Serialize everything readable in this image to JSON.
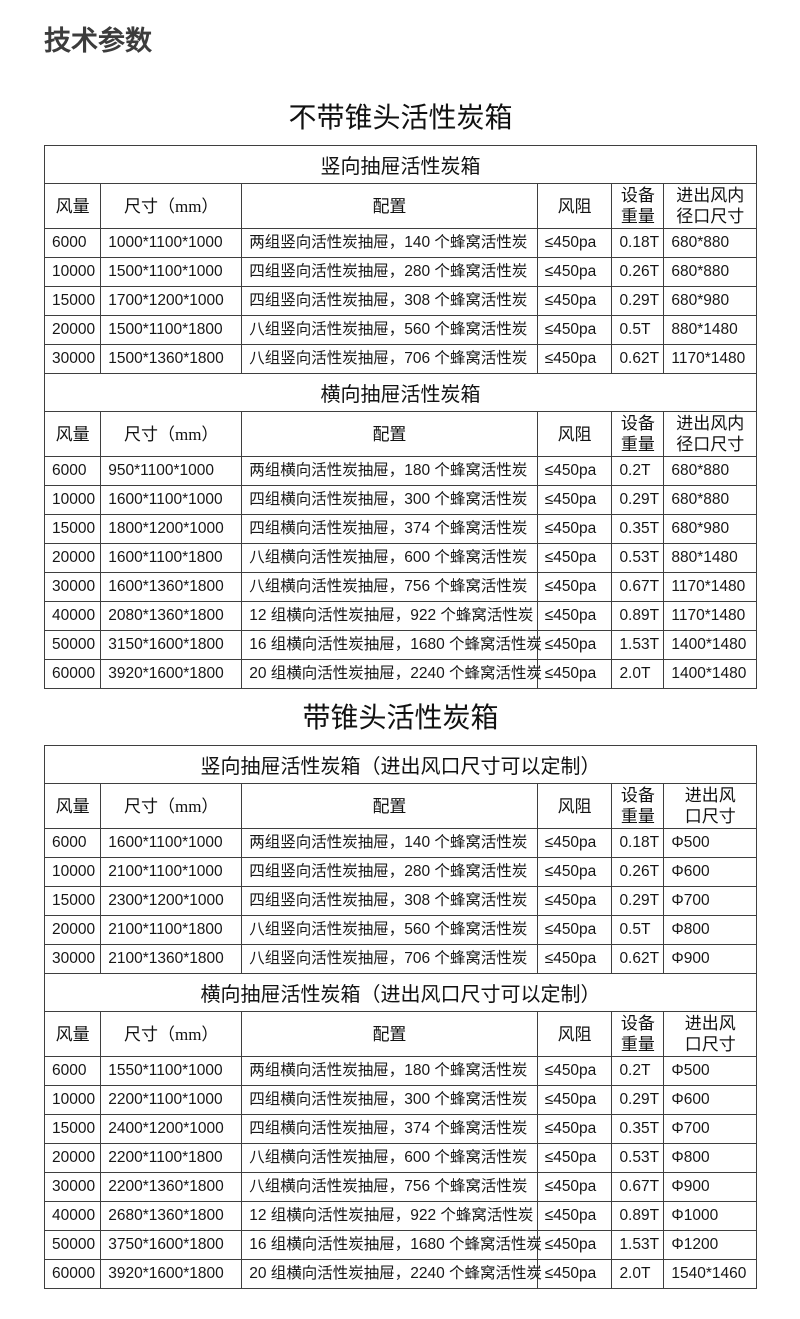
{
  "page": {
    "title": "技术参数"
  },
  "sections": [
    {
      "heading": "不带锥头活性炭箱",
      "tables": [
        {
          "subtitle": "竖向抽屉活性炭箱",
          "columns": [
            "风量",
            "尺寸（mm）",
            "配置",
            "风阻",
            "设备\n重量",
            "进出风内\n径口尺寸"
          ],
          "rows": [
            [
              "6000",
              "1000*1100*1000",
              "两组竖向活性炭抽屉，140 个蜂窝活性炭",
              "≤450pa",
              "0.18T",
              "680*880"
            ],
            [
              "10000",
              "1500*1100*1000",
              "四组竖向活性炭抽屉，280 个蜂窝活性炭",
              "≤450pa",
              "0.26T",
              "680*880"
            ],
            [
              "15000",
              "1700*1200*1000",
              "四组竖向活性炭抽屉，308 个蜂窝活性炭",
              "≤450pa",
              "0.29T",
              "680*980"
            ],
            [
              "20000",
              "1500*1100*1800",
              "八组竖向活性炭抽屉，560 个蜂窝活性炭",
              "≤450pa",
              "0.5T",
              "880*1480"
            ],
            [
              "30000",
              "1500*1360*1800",
              "八组竖向活性炭抽屉，706 个蜂窝活性炭",
              "≤450pa",
              "0.62T",
              "1170*1480"
            ]
          ]
        },
        {
          "subtitle": "横向抽屉活性炭箱",
          "columns": [
            "风量",
            "尺寸（mm）",
            "配置",
            "风阻",
            "设备\n重量",
            "进出风内\n径口尺寸"
          ],
          "rows": [
            [
              "6000",
              "950*1100*1000",
              "两组横向活性炭抽屉，180 个蜂窝活性炭",
              "≤450pa",
              "0.2T",
              "680*880"
            ],
            [
              "10000",
              "1600*1100*1000",
              "四组横向活性炭抽屉，300 个蜂窝活性炭",
              "≤450pa",
              "0.29T",
              "680*880"
            ],
            [
              "15000",
              "1800*1200*1000",
              "四组横向活性炭抽屉，374 个蜂窝活性炭",
              "≤450pa",
              "0.35T",
              "680*980"
            ],
            [
              "20000",
              "1600*1100*1800",
              "八组横向活性炭抽屉，600 个蜂窝活性炭",
              "≤450pa",
              "0.53T",
              "880*1480"
            ],
            [
              "30000",
              "1600*1360*1800",
              "八组横向活性炭抽屉，756 个蜂窝活性炭",
              "≤450pa",
              "0.67T",
              "1170*1480"
            ],
            [
              "40000",
              "2080*1360*1800",
              "12 组横向活性炭抽屉，922 个蜂窝活性炭",
              "≤450pa",
              "0.89T",
              "1170*1480"
            ],
            [
              "50000",
              "3150*1600*1800",
              "16 组横向活性炭抽屉，1680 个蜂窝活性炭",
              "≤450pa",
              "1.53T",
              "1400*1480"
            ],
            [
              "60000",
              "3920*1600*1800",
              "20 组横向活性炭抽屉，2240 个蜂窝活性炭",
              "≤450pa",
              "2.0T",
              "1400*1480"
            ]
          ]
        }
      ]
    },
    {
      "heading": "带锥头活性炭箱",
      "tables": [
        {
          "subtitle": "竖向抽屉活性炭箱（进出风口尺寸可以定制）",
          "columns": [
            "风量",
            "尺寸（mm）",
            "配置",
            "风阻",
            "设备\n重量",
            "进出风\n口尺寸"
          ],
          "rows": [
            [
              "6000",
              "1600*1100*1000",
              "两组竖向活性炭抽屉，140 个蜂窝活性炭",
              "≤450pa",
              "0.18T",
              "Φ500"
            ],
            [
              "10000",
              "2100*1100*1000",
              "四组竖向活性炭抽屉，280 个蜂窝活性炭",
              "≤450pa",
              "0.26T",
              "Φ600"
            ],
            [
              "15000",
              "2300*1200*1000",
              "四组竖向活性炭抽屉，308 个蜂窝活性炭",
              "≤450pa",
              "0.29T",
              "Φ700"
            ],
            [
              "20000",
              "2100*1100*1800",
              "八组竖向活性炭抽屉，560 个蜂窝活性炭",
              "≤450pa",
              "0.5T",
              "Φ800"
            ],
            [
              "30000",
              "2100*1360*1800",
              "八组竖向活性炭抽屉，706 个蜂窝活性炭",
              "≤450pa",
              "0.62T",
              "Φ900"
            ]
          ]
        },
        {
          "subtitle": "横向抽屉活性炭箱（进出风口尺寸可以定制）",
          "columns": [
            "风量",
            "尺寸（mm）",
            "配置",
            "风阻",
            "设备\n重量",
            "进出风\n口尺寸"
          ],
          "rows": [
            [
              "6000",
              "1550*1100*1000",
              "两组横向活性炭抽屉，180 个蜂窝活性炭",
              "≤450pa",
              "0.2T",
              "Φ500"
            ],
            [
              "10000",
              "2200*1100*1000",
              "四组横向活性炭抽屉，300 个蜂窝活性炭",
              "≤450pa",
              "0.29T",
              "Φ600"
            ],
            [
              "15000",
              "2400*1200*1000",
              "四组横向活性炭抽屉，374 个蜂窝活性炭",
              "≤450pa",
              "0.35T",
              "Φ700"
            ],
            [
              "20000",
              "2200*1100*1800",
              "八组横向活性炭抽屉，600 个蜂窝活性炭",
              "≤450pa",
              "0.53T",
              "Φ800"
            ],
            [
              "30000",
              "2200*1360*1800",
              "八组横向活性炭抽屉，756 个蜂窝活性炭",
              "≤450pa",
              "0.67T",
              "Φ900"
            ],
            [
              "40000",
              "2680*1360*1800",
              "12 组横向活性炭抽屉，922 个蜂窝活性炭",
              "≤450pa",
              "0.89T",
              "Φ1000"
            ],
            [
              "50000",
              "3750*1600*1800",
              "16 组横向活性炭抽屉，1680 个蜂窝活性炭",
              "≤450pa",
              "1.53T",
              "Φ1200"
            ],
            [
              "60000",
              "3920*1600*1800",
              "20 组横向活性炭抽屉，2240 个蜂窝活性炭",
              "≤450pa",
              "2.0T",
              "1540*1460"
            ]
          ]
        }
      ]
    }
  ],
  "colors": {
    "border": "#3f3f3f",
    "title_text": "#3c3c3c",
    "body_text": "#161616",
    "background": "#ffffff"
  }
}
